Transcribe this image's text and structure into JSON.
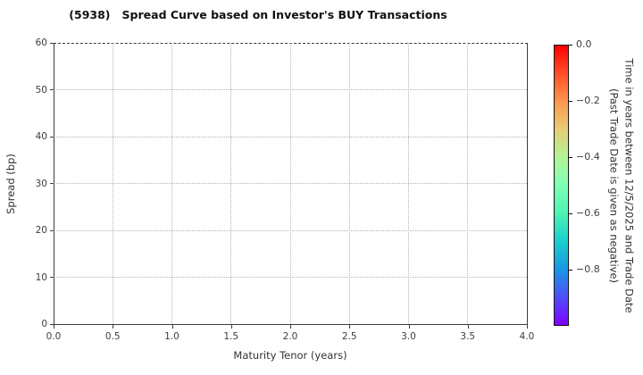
{
  "figure": {
    "title": "(5938)   Spread Curve based on Investor's BUY Transactions"
  },
  "chart_data": {
    "type": "scatter",
    "title": "(5938)   Spread Curve based on Investor's BUY Transactions",
    "xlabel": "Maturity Tenor (years)",
    "ylabel": "Spread (bp)",
    "xlim": [
      0.0,
      4.0
    ],
    "ylim": [
      0,
      60
    ],
    "x_ticks": [
      "0.0",
      "0.5",
      "1.0",
      "1.5",
      "2.0",
      "2.5",
      "3.0",
      "3.5",
      "4.0"
    ],
    "y_ticks": [
      "0",
      "10",
      "20",
      "30",
      "40",
      "50",
      "60"
    ],
    "grid": "dotted gridlines at every tick, both axes",
    "legend": "none",
    "points": [],
    "series": [],
    "colorbar": {
      "label_line1": "Time in years between 12/5/2025 and Trade Date",
      "label_line2": "(Past Trade Date is given as negative)",
      "ticks": [
        "0.0",
        "−0.2",
        "−0.4",
        "−0.6",
        "−0.8"
      ],
      "range_top_to_bottom": [
        0.0,
        -1.0
      ],
      "colormap": "rainbow-reversed (red at 0.0 to violet at -1.0)",
      "gradient_top_to_bottom": [
        "#ff0000",
        "#ff4f28",
        "#ff964f",
        "#e6ce74",
        "#b3f396",
        "#80ffb4",
        "#4df3b4",
        "#1acece",
        "#1a96e3",
        "#4d4ff7",
        "#8000ff"
      ]
    },
    "style": {
      "spine_color": "#3c3c3c",
      "grid_color": "#b3b3b3",
      "tick_text_color": "#3d3d3d",
      "background": "#ffffff"
    }
  }
}
